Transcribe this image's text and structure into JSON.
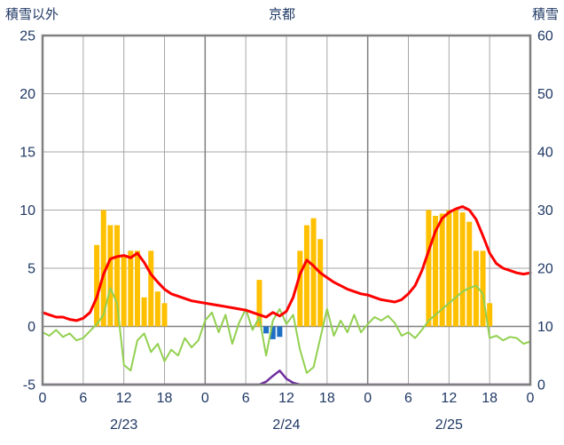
{
  "header": {
    "left_label": "積雪以外",
    "title": "京都",
    "right_label": "積雪"
  },
  "colors": {
    "axis_text": "#1F3864",
    "frame": "#808080",
    "grid_minor": "#A6A6A6",
    "grid_day": "#7F7F7F",
    "zero_line": "#808080",
    "orange_bar": "#FFC000",
    "blue_bar": "#1F6FC5",
    "red_line": "#FF0000",
    "green_line": "#92D050",
    "purple_line": "#7030A0"
  },
  "chart_data": {
    "type": "line",
    "title": "京都",
    "x_unit": "hour",
    "x_range": [
      0,
      72
    ],
    "grid": true,
    "left_axis": {
      "label": "積雪以外",
      "min": -5,
      "max": 25,
      "ticks": [
        25,
        20,
        15,
        10,
        5,
        0,
        -5
      ]
    },
    "right_axis": {
      "label": "積雪",
      "min": 0,
      "max": 60,
      "ticks": [
        60,
        50,
        40,
        30,
        20,
        10,
        0
      ]
    },
    "x_axis": {
      "hour_positions": [
        0,
        6,
        12,
        18,
        24,
        30,
        36,
        42,
        48,
        54,
        60,
        66,
        72
      ],
      "hour_labels": [
        "0",
        "6",
        "12",
        "18",
        "0",
        "6",
        "12",
        "18",
        "0",
        "6",
        "12",
        "18",
        "0"
      ],
      "date_labels": [
        "2/23",
        "2/24",
        "2/25"
      ],
      "date_positions": [
        12,
        36,
        60
      ]
    },
    "series": [
      {
        "name": "orange-bars",
        "type": "bar",
        "axis": "left",
        "color": "#FFC000",
        "values": [
          0,
          0,
          0,
          0,
          0,
          0,
          0,
          0,
          7,
          10,
          8.7,
          8.7,
          6,
          6.5,
          6.5,
          2.5,
          6.5,
          3,
          2,
          0,
          0,
          0,
          0,
          0,
          0,
          0,
          0,
          0,
          0,
          0,
          0,
          0,
          4,
          0,
          0,
          0,
          0,
          0,
          6.5,
          8.7,
          9.3,
          7.5,
          0,
          0,
          0,
          0,
          0,
          0,
          0,
          0,
          0,
          0,
          0,
          0,
          0,
          0,
          0,
          10,
          9.5,
          9.7,
          10,
          10,
          9.8,
          9,
          6.5,
          6.5,
          2,
          0,
          0,
          0,
          0,
          0,
          0
        ]
      },
      {
        "name": "blue-bars",
        "type": "bar",
        "axis": "left",
        "color": "#1F6FC5",
        "values": [
          0,
          0,
          0,
          0,
          0,
          0,
          0,
          0,
          0,
          0,
          0,
          0,
          0,
          0,
          0,
          0,
          0,
          0,
          0,
          0,
          0,
          0,
          0,
          0,
          0,
          0,
          0,
          0,
          0,
          0,
          0,
          0,
          0,
          -0.6,
          -1.1,
          -0.9,
          0,
          0,
          0,
          0,
          0,
          0,
          0,
          0,
          0,
          0,
          0,
          0,
          0,
          0,
          0,
          0,
          0,
          0,
          0,
          0,
          0,
          0,
          0,
          0,
          0,
          0,
          0,
          0,
          0,
          0,
          0,
          0,
          0,
          0,
          0,
          0,
          0
        ]
      },
      {
        "name": "snow-depth-line",
        "type": "line",
        "axis": "right",
        "color": "#7030A0",
        "width": 2.5,
        "values": [
          0,
          0,
          0,
          0,
          0,
          0,
          0,
          0,
          0,
          0,
          0,
          0,
          0,
          0,
          0,
          0,
          0,
          0,
          0,
          0,
          0,
          0,
          0,
          0,
          0,
          0,
          0,
          0,
          0,
          0,
          0,
          0,
          0,
          0.5,
          1.5,
          2.4,
          1.0,
          0.3,
          0,
          0,
          0,
          0,
          0,
          0,
          0,
          0,
          0,
          0,
          0,
          0,
          0,
          0,
          0,
          0,
          0,
          0,
          0,
          0,
          0,
          0,
          0,
          0,
          0,
          0,
          0,
          0,
          0,
          0,
          0,
          0,
          0,
          0,
          0
        ]
      },
      {
        "name": "green-line",
        "type": "line",
        "axis": "left",
        "color": "#92D050",
        "width": 2,
        "values": [
          -0.5,
          -0.8,
          -0.3,
          -0.9,
          -0.6,
          -1.2,
          -1.0,
          -0.4,
          0.2,
          1.0,
          3.3,
          2.0,
          -3.3,
          -3.8,
          -1.2,
          -0.6,
          -2.2,
          -1.5,
          -3.0,
          -2.0,
          -2.5,
          -1.0,
          -1.8,
          -1.2,
          0.5,
          1.2,
          -0.5,
          1.0,
          -1.5,
          0.3,
          1.5,
          -0.3,
          0.8,
          -2.5,
          0.5,
          1.5,
          0.2,
          1.0,
          -2.0,
          -4.0,
          -3.5,
          -1.0,
          1.5,
          -0.8,
          0.5,
          -0.5,
          1.0,
          -0.5,
          0.2,
          0.8,
          0.5,
          0.9,
          0.3,
          -0.8,
          -0.5,
          -1.0,
          -0.3,
          0.5,
          1.0,
          1.5,
          2.0,
          2.5,
          3.0,
          3.3,
          3.5,
          2.8,
          -1.0,
          -0.8,
          -1.2,
          -0.9,
          -1.0,
          -1.5,
          -1.3
        ]
      },
      {
        "name": "red-line",
        "type": "line",
        "axis": "left",
        "color": "#FF0000",
        "width": 3,
        "values": [
          1.2,
          1.0,
          0.8,
          0.8,
          0.6,
          0.5,
          0.7,
          1.2,
          2.5,
          4.5,
          5.8,
          6.0,
          6.1,
          5.9,
          6.3,
          5.5,
          4.5,
          3.8,
          3.2,
          2.8,
          2.6,
          2.4,
          2.2,
          2.1,
          2.0,
          1.9,
          1.8,
          1.7,
          1.6,
          1.5,
          1.4,
          1.2,
          1.0,
          0.8,
          1.2,
          0.9,
          1.3,
          2.5,
          4.5,
          5.7,
          5.2,
          4.6,
          4.2,
          3.8,
          3.5,
          3.2,
          3.0,
          2.8,
          2.7,
          2.5,
          2.3,
          2.2,
          2.1,
          2.3,
          2.8,
          3.5,
          4.8,
          6.5,
          8.2,
          9.3,
          9.8,
          10.1,
          10.3,
          10.0,
          9.2,
          7.8,
          6.3,
          5.4,
          5.0,
          4.8,
          4.6,
          4.5,
          4.6
        ]
      }
    ]
  }
}
